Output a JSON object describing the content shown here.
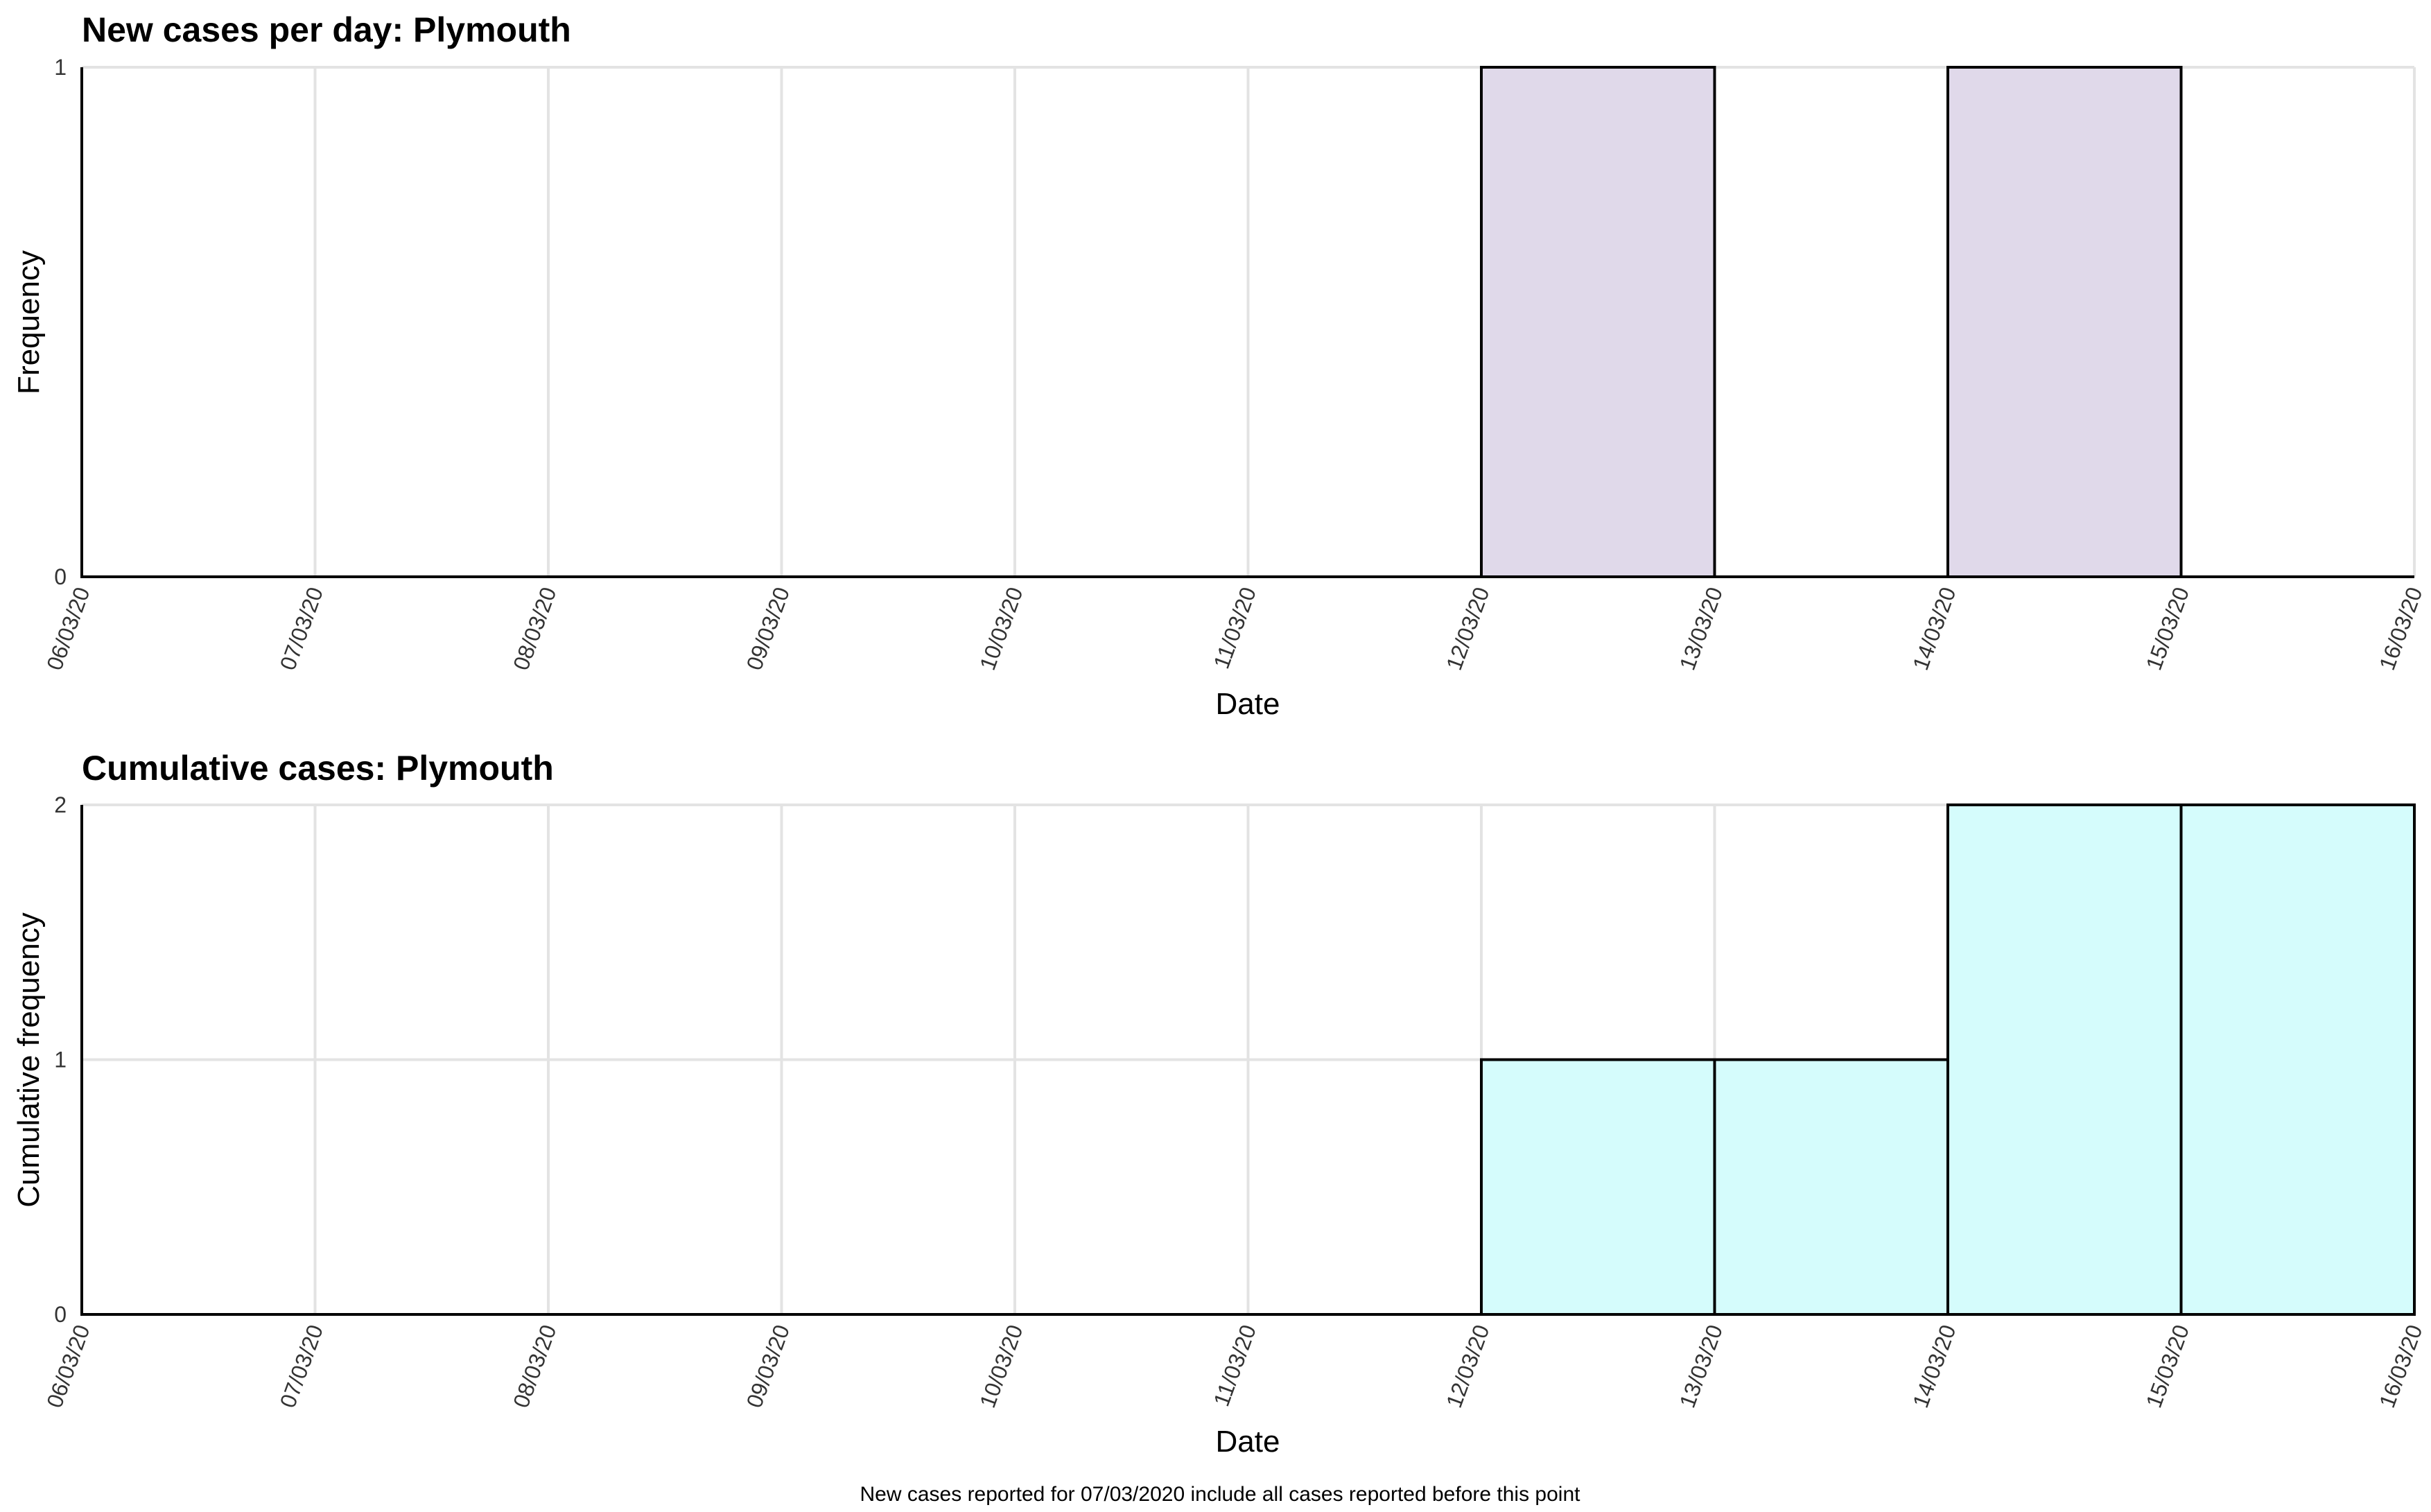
{
  "chart_data": [
    {
      "type": "bar",
      "title": "New cases per day: Plymouth",
      "xlabel": "Date",
      "ylabel": "Frequency",
      "ylim": [
        0,
        1
      ],
      "yticks": [
        "0",
        "1"
      ],
      "categories": [
        "06/03/20",
        "07/03/20",
        "08/03/20",
        "09/03/20",
        "10/03/20",
        "11/03/20",
        "12/03/20",
        "13/03/20",
        "14/03/20",
        "15/03/20"
      ],
      "x_tick_labels": [
        "06/03/20",
        "07/03/20",
        "08/03/20",
        "09/03/20",
        "10/03/20",
        "11/03/20",
        "12/03/20",
        "13/03/20",
        "14/03/20",
        "15/03/20",
        "16/03/20"
      ],
      "values": [
        0,
        0,
        0,
        0,
        0,
        0,
        1,
        0,
        1,
        0
      ],
      "bar_color": "#e0d9ea",
      "grid": true
    },
    {
      "type": "bar",
      "title": "Cumulative cases: Plymouth",
      "xlabel": "Date",
      "ylabel": "Cumulative frequency",
      "ylim": [
        0,
        2
      ],
      "yticks": [
        "0",
        "1",
        "2"
      ],
      "categories": [
        "06/03/20",
        "07/03/20",
        "08/03/20",
        "09/03/20",
        "10/03/20",
        "11/03/20",
        "12/03/20",
        "13/03/20",
        "14/03/20",
        "15/03/20"
      ],
      "x_tick_labels": [
        "06/03/20",
        "07/03/20",
        "08/03/20",
        "09/03/20",
        "10/03/20",
        "11/03/20",
        "12/03/20",
        "13/03/20",
        "14/03/20",
        "15/03/20",
        "16/03/20"
      ],
      "values": [
        0,
        0,
        0,
        0,
        0,
        0,
        1,
        1,
        2,
        2
      ],
      "bar_color": "#d5fcfc",
      "grid": true
    }
  ],
  "footnote": "New cases reported for 07/03/2020 include all cases reported before this point"
}
